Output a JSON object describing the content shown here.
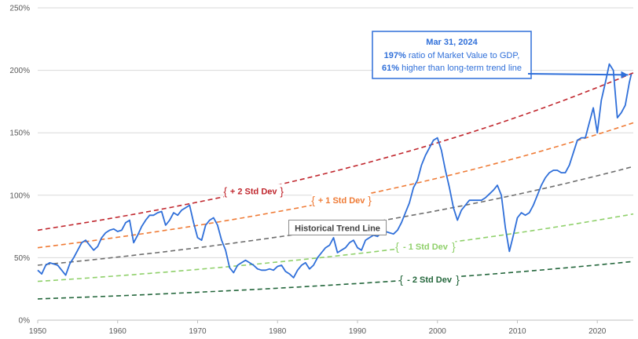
{
  "chart_data": {
    "type": "line",
    "title": "",
    "xlabel": "",
    "ylabel": "",
    "xlim": [
      1950,
      2024.5
    ],
    "ylim": [
      0,
      250
    ],
    "x_ticks": [
      "1950",
      "1960",
      "1970",
      "1980",
      "1990",
      "2000",
      "2010",
      "2020"
    ],
    "y_ticks": [
      "0%",
      "50%",
      "100%",
      "150%",
      "200%",
      "250%"
    ],
    "grid": "horizontal",
    "series": [
      {
        "name": "",
        "role": "ratio",
        "color": "#2f6fd9",
        "x": [
          1950,
          1950.5,
          1951,
          1951.5,
          1952,
          1952.5,
          1953,
          1953.5,
          1954,
          1954.5,
          1955,
          1955.5,
          1956,
          1956.5,
          1957,
          1957.5,
          1958,
          1958.5,
          1959,
          1959.5,
          1960,
          1960.5,
          1961,
          1961.5,
          1962,
          1962.5,
          1963,
          1963.5,
          1964,
          1964.5,
          1965,
          1965.5,
          1966,
          1966.5,
          1967,
          1967.5,
          1968,
          1968.5,
          1969,
          1969.5,
          1970,
          1970.5,
          1971,
          1971.5,
          1972,
          1972.5,
          1973,
          1973.5,
          1974,
          1974.5,
          1975,
          1975.5,
          1976,
          1976.5,
          1977,
          1977.5,
          1978,
          1978.5,
          1979,
          1979.5,
          1980,
          1980.5,
          1981,
          1981.5,
          1982,
          1982.5,
          1983,
          1983.5,
          1984,
          1984.5,
          1985,
          1985.5,
          1986,
          1986.5,
          1987,
          1987.5,
          1988,
          1988.5,
          1989,
          1989.5,
          1990,
          1990.5,
          1991,
          1991.5,
          1992,
          1992.5,
          1993,
          1993.5,
          1994,
          1994.5,
          1995,
          1995.5,
          1996,
          1996.5,
          1997,
          1997.5,
          1998,
          1998.5,
          1999,
          1999.5,
          2000,
          2000.5,
          2001,
          2001.5,
          2002,
          2002.5,
          2003,
          2003.5,
          2004,
          2004.5,
          2005,
          2005.5,
          2006,
          2006.5,
          2007,
          2007.5,
          2008,
          2008.5,
          2009,
          2009.5,
          2010,
          2010.5,
          2011,
          2011.5,
          2012,
          2012.5,
          2013,
          2013.5,
          2014,
          2014.5,
          2015,
          2015.5,
          2016,
          2016.5,
          2017,
          2017.5,
          2018,
          2018.5,
          2019,
          2019.5,
          2020,
          2020.5,
          2021,
          2021.5,
          2022,
          2022.5,
          2023,
          2023.5,
          2024,
          2024.25
        ],
        "values": [
          40,
          37,
          44,
          46,
          45,
          44,
          40,
          36,
          45,
          50,
          56,
          62,
          64,
          60,
          56,
          59,
          66,
          70,
          72,
          73,
          71,
          72,
          78,
          80,
          62,
          68,
          75,
          80,
          84,
          84,
          86,
          87,
          76,
          80,
          86,
          84,
          88,
          90,
          92,
          78,
          66,
          64,
          76,
          80,
          82,
          76,
          64,
          56,
          42,
          38,
          44,
          46,
          48,
          46,
          44,
          41,
          40,
          40,
          41,
          40,
          43,
          44,
          39,
          37,
          34,
          40,
          44,
          46,
          41,
          44,
          50,
          54,
          58,
          60,
          66,
          54,
          56,
          58,
          62,
          64,
          58,
          56,
          64,
          66,
          68,
          67,
          70,
          71,
          70,
          69,
          72,
          78,
          86,
          94,
          106,
          112,
          124,
          132,
          138,
          144,
          146,
          136,
          120,
          106,
          90,
          80,
          88,
          92,
          96,
          96,
          96,
          96,
          98,
          101,
          104,
          108,
          100,
          74,
          55,
          68,
          82,
          86,
          84,
          86,
          92,
          100,
          108,
          114,
          118,
          120,
          120,
          118,
          118,
          124,
          134,
          144,
          146,
          146,
          158,
          170,
          150,
          176,
          190,
          205,
          200,
          162,
          166,
          172,
          190,
          197
        ],
        "labels": []
      },
      {
        "name": "+ 2 Std Dev",
        "color": "#c0262d",
        "dash": true,
        "fn_params": {
          "start": 72,
          "end": 198
        }
      },
      {
        "name": "+ 1 Std Dev",
        "color": "#ef7b36",
        "dash": true,
        "fn_params": {
          "start": 58,
          "end": 158
        }
      },
      {
        "name": "Historical Trend Line",
        "color": "#6e6e6e",
        "dash": true,
        "fn_params": {
          "start": 44,
          "end": 123
        }
      },
      {
        "name": "- 1 Std Dev",
        "color": "#8fd06a",
        "dash": true,
        "fn_params": {
          "start": 31,
          "end": 85
        }
      },
      {
        "name": "- 2 Std Dev",
        "color": "#23663b",
        "dash": true,
        "fn_params": {
          "start": 17,
          "end": 47
        }
      }
    ],
    "annotation": {
      "date": "Mar 31, 2024",
      "line1_value": "197%",
      "line1_text": "ratio of Market Value to GDP,",
      "line2_value": "61%",
      "line2_text": "higher than long-term trend line",
      "points_to": {
        "x": 2024.25,
        "y": 197
      }
    }
  }
}
